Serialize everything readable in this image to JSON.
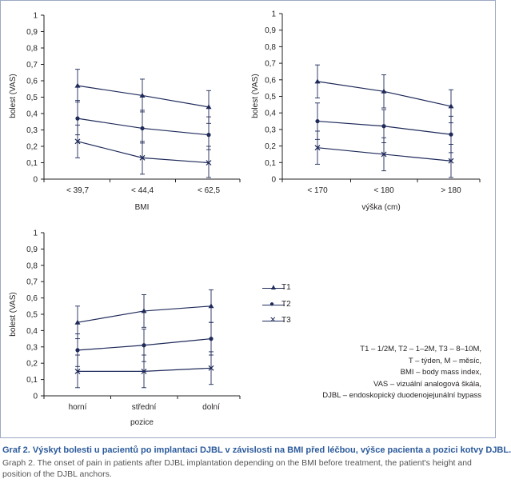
{
  "chart_data": [
    {
      "type": "line",
      "xlabel": "BMI",
      "ylabel": "bolest (VAS)",
      "categories": [
        "< 39,7",
        "< 44,4",
        "< 62,5"
      ],
      "ylim": [
        0,
        1
      ],
      "yticks": [
        "0",
        "0,1",
        "0,2",
        "0,3",
        "0,4",
        "0,5",
        "0,6",
        "0,7",
        "0,8",
        "0,9",
        "1"
      ],
      "series": [
        {
          "name": "T1",
          "values": [
            0.57,
            0.51,
            0.44
          ],
          "err_low": [
            0.47,
            0.41,
            0.34
          ],
          "err_high": [
            0.67,
            0.61,
            0.54
          ]
        },
        {
          "name": "T2",
          "values": [
            0.37,
            0.31,
            0.27
          ],
          "err_low": [
            0.27,
            0.22,
            0.18
          ],
          "err_high": [
            0.48,
            0.42,
            0.38
          ]
        },
        {
          "name": "T3",
          "values": [
            0.23,
            0.13,
            0.1
          ],
          "err_low": [
            0.13,
            0.03,
            0.01
          ],
          "err_high": [
            0.33,
            0.23,
            0.2
          ]
        }
      ]
    },
    {
      "type": "line",
      "xlabel": "výška (cm)",
      "ylabel": "bolest (VAS)",
      "categories": [
        "< 170",
        "< 180",
        "> 180"
      ],
      "ylim": [
        0,
        1
      ],
      "yticks": [
        "0",
        "0,1",
        "0,2",
        "0,3",
        "0,4",
        "0,5",
        "0,6",
        "0,7",
        "0,8",
        "0,9",
        "1"
      ],
      "series": [
        {
          "name": "T1",
          "values": [
            0.59,
            0.53,
            0.44
          ],
          "err_low": [
            0.49,
            0.43,
            0.34
          ],
          "err_high": [
            0.69,
            0.63,
            0.54
          ]
        },
        {
          "name": "T2",
          "values": [
            0.35,
            0.32,
            0.27
          ],
          "err_low": [
            0.24,
            0.22,
            0.16
          ],
          "err_high": [
            0.46,
            0.42,
            0.38
          ]
        },
        {
          "name": "T3",
          "values": [
            0.19,
            0.15,
            0.11
          ],
          "err_low": [
            0.09,
            0.05,
            0.01
          ],
          "err_high": [
            0.29,
            0.25,
            0.21
          ]
        }
      ]
    },
    {
      "type": "line",
      "xlabel": "pozice",
      "ylabel": "bolest (VAS)",
      "categories": [
        "horní",
        "střední",
        "dolní"
      ],
      "ylim": [
        0,
        1
      ],
      "yticks": [
        "0",
        "0,1",
        "0,2",
        "0,3",
        "0,4",
        "0,5",
        "0,6",
        "0,7",
        "0,8",
        "0,9",
        "1"
      ],
      "series": [
        {
          "name": "T1",
          "values": [
            0.45,
            0.52,
            0.55
          ],
          "err_low": [
            0.35,
            0.42,
            0.45
          ],
          "err_high": [
            0.55,
            0.62,
            0.65
          ]
        },
        {
          "name": "T2",
          "values": [
            0.28,
            0.31,
            0.35
          ],
          "err_low": [
            0.18,
            0.21,
            0.25
          ],
          "err_high": [
            0.38,
            0.41,
            0.45
          ]
        },
        {
          "name": "T3",
          "values": [
            0.15,
            0.15,
            0.17
          ],
          "err_low": [
            0.05,
            0.05,
            0.07
          ],
          "err_high": [
            0.25,
            0.25,
            0.27
          ]
        }
      ]
    }
  ],
  "legend": [
    {
      "name": "T1",
      "marker": "▲"
    },
    {
      "name": "T2",
      "marker": "●"
    },
    {
      "name": "T3",
      "marker": "✕"
    }
  ],
  "notes": [
    "T1 – 1/2M, T2 – 1–2M, T3 – 8–10M,",
    "T – týden, M – měsíc,",
    "BMI – body mass index,",
    "VAS – vizuální analogová škála,",
    "DJBL – endoskopický duodenojejunální bypass"
  ],
  "caption_cz": "Graf 2. Výskyt bolesti u pacientů po implantaci DJBL v závislosti na BMI před léčbou, výšce pacienta a pozici kotvy DJBL.",
  "caption_en": "Graph 2. The onset of pain in patients after DJBL implantation depending on the BMI before treatment, the patient's height and position of the DJBL anchors.",
  "colors": {
    "line": "#1e2a5a",
    "axis": "#231f20",
    "caption_cz": "#2b5a9b",
    "caption_en": "#555555",
    "border": "#9aa9c2"
  }
}
